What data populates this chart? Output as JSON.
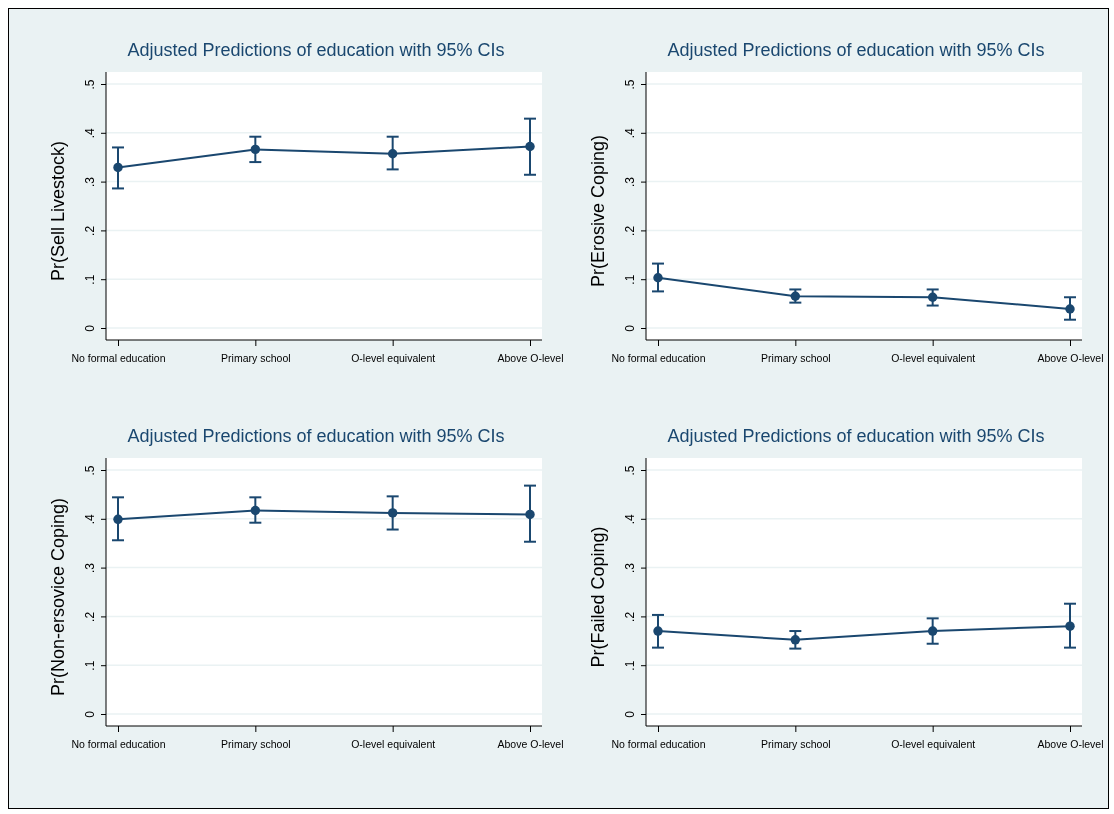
{
  "chart_data": [
    {
      "type": "line",
      "title": "Adjusted Predictions of education with 95% CIs",
      "ylabel": "Pr(Sell Livestock)",
      "categories": [
        "No formal education",
        "Primary school",
        "O-level equivalent",
        "Above O-level"
      ],
      "series": [
        {
          "color": "#1a476f",
          "values": [
            0.329,
            0.366,
            0.357,
            0.372
          ],
          "errors": [
            [
              0.286,
              0.37
            ],
            [
              0.34,
              0.392
            ],
            [
              0.325,
              0.392
            ],
            [
              0.314,
              0.429
            ]
          ]
        }
      ],
      "ylim": [
        0,
        0.5
      ],
      "yticks": [
        {
          "value": 0,
          "label": "0"
        },
        {
          "value": 0.1,
          "label": ".1"
        },
        {
          "value": 0.2,
          "label": ".2"
        },
        {
          "value": 0.3,
          "label": ".3"
        },
        {
          "value": 0.4,
          "label": ".4"
        },
        {
          "value": 0.5,
          "label": ".5"
        }
      ],
      "grid": "y",
      "marker": "circle"
    },
    {
      "type": "line",
      "title": "Adjusted Predictions of education with 95% CIs",
      "ylabel": "Pr(Erosive Coping)",
      "categories": [
        "No formal education",
        "Primary school",
        "O-level equivalent",
        "Above O-level"
      ],
      "series": [
        {
          "color": "#1a476f",
          "values": [
            0.103,
            0.065,
            0.063,
            0.039
          ],
          "errors": [
            [
              0.075,
              0.132
            ],
            [
              0.052,
              0.079
            ],
            [
              0.046,
              0.079
            ],
            [
              0.017,
              0.063
            ]
          ]
        }
      ],
      "ylim": [
        0,
        0.5
      ],
      "yticks": [
        {
          "value": 0,
          "label": "0"
        },
        {
          "value": 0.1,
          "label": ".1"
        },
        {
          "value": 0.2,
          "label": ".2"
        },
        {
          "value": 0.3,
          "label": ".3"
        },
        {
          "value": 0.4,
          "label": ".4"
        },
        {
          "value": 0.5,
          "label": ".5"
        }
      ],
      "grid": "y",
      "marker": "circle"
    },
    {
      "type": "line",
      "title": "Adjusted Predictions of education with 95% CIs",
      "ylabel": "Pr(Non-ersovice Coping)",
      "categories": [
        "No formal education",
        "Primary school",
        "O-level equivalent",
        "Above O-level"
      ],
      "series": [
        {
          "color": "#1a476f",
          "values": [
            0.399,
            0.417,
            0.412,
            0.409
          ],
          "errors": [
            [
              0.356,
              0.444
            ],
            [
              0.392,
              0.444
            ],
            [
              0.378,
              0.446
            ],
            [
              0.353,
              0.468
            ]
          ]
        }
      ],
      "ylim": [
        0,
        0.5
      ],
      "yticks": [
        {
          "value": 0,
          "label": "0"
        },
        {
          "value": 0.1,
          "label": ".1"
        },
        {
          "value": 0.2,
          "label": ".2"
        },
        {
          "value": 0.3,
          "label": ".3"
        },
        {
          "value": 0.4,
          "label": ".4"
        },
        {
          "value": 0.5,
          "label": ".5"
        }
      ],
      "grid": "y",
      "marker": "circle"
    },
    {
      "type": "line",
      "title": "Adjusted Predictions of education with 95% CIs",
      "ylabel": "Pr(Failed Coping)",
      "categories": [
        "No formal education",
        "Primary school",
        "O-level equivalent",
        "Above O-level"
      ],
      "series": [
        {
          "color": "#1a476f",
          "values": [
            0.17,
            0.152,
            0.17,
            0.18
          ],
          "errors": [
            [
              0.136,
              0.203
            ],
            [
              0.134,
              0.17
            ],
            [
              0.144,
              0.196
            ],
            [
              0.136,
              0.226
            ]
          ]
        }
      ],
      "ylim": [
        0,
        0.5
      ],
      "yticks": [
        {
          "value": 0,
          "label": "0"
        },
        {
          "value": 0.1,
          "label": ".1"
        },
        {
          "value": 0.2,
          "label": ".2"
        },
        {
          "value": 0.3,
          "label": ".3"
        },
        {
          "value": 0.4,
          "label": ".4"
        },
        {
          "value": 0.5,
          "label": ".5"
        }
      ],
      "grid": "y",
      "marker": "circle"
    }
  ]
}
